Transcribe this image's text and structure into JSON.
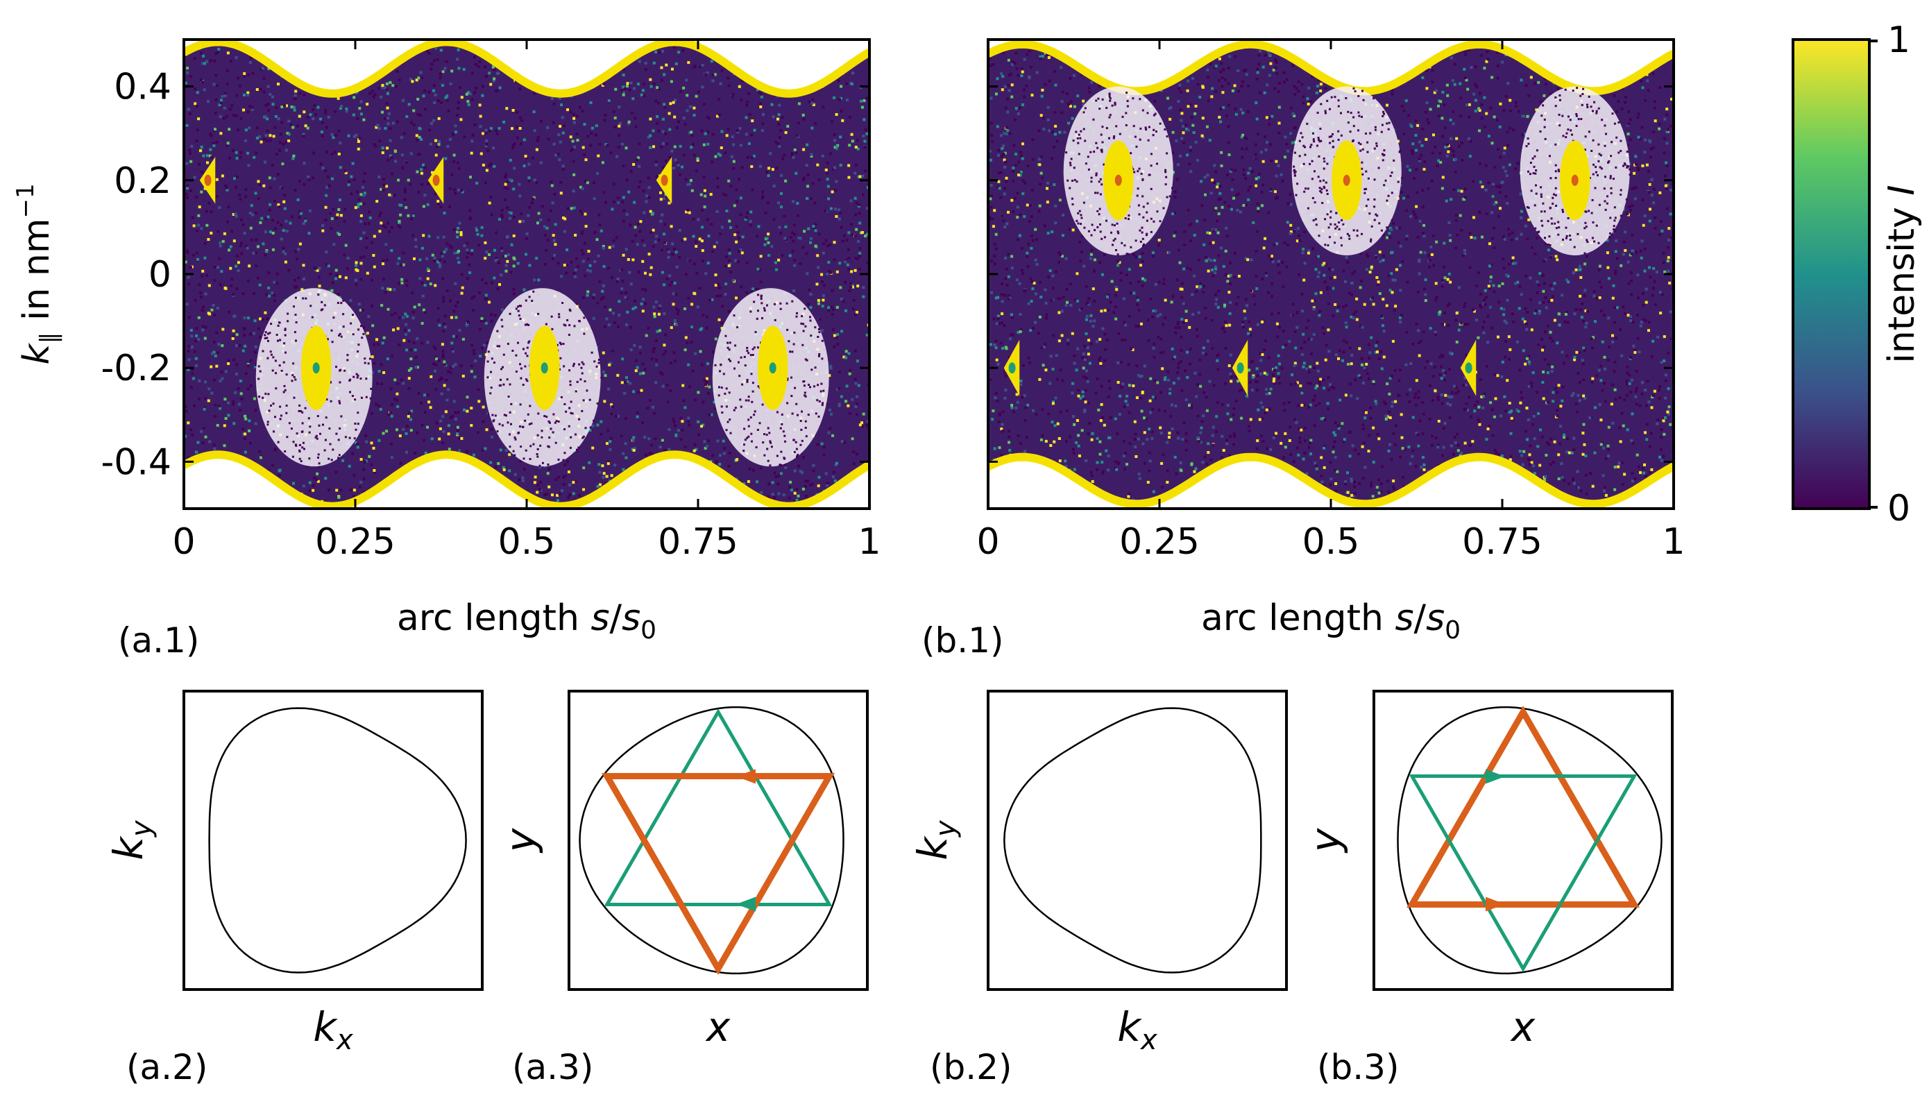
{
  "chart_data": [
    {
      "id": "a.1",
      "type": "scatter",
      "panel_label": "(a.1)",
      "xlabel": {
        "main": "arc length ",
        "var": "s",
        "slash": "/",
        "var0": "s",
        "sub": "0"
      },
      "ylabel": {
        "var": "k",
        "sub": "∥",
        "unit": " in nm",
        "sup": "−1"
      },
      "xlim": [
        0,
        1
      ],
      "ylim": [
        -0.5,
        0.5
      ],
      "xticks": [
        0,
        0.25,
        0.5,
        0.75,
        1
      ],
      "xtick_labels": [
        "0",
        "0.25",
        "0.5",
        "0.75",
        "1"
      ],
      "yticks": [
        0.4,
        0.2,
        0,
        -0.2,
        -0.4
      ],
      "ytick_labels": [
        "0.4",
        "0.2",
        "0",
        "-0.2",
        "-0.4"
      ],
      "colorscale": "viridis",
      "boundary_mean": 0.44,
      "boundary_amplitude": 0.055,
      "boundary_period": 0.333,
      "islands": [
        {
          "s": 0.035,
          "k": 0.2,
          "w": 0.012,
          "h": 0.05,
          "core": "#d95f1a",
          "shape": "triangle-left"
        },
        {
          "s": 0.368,
          "k": 0.2,
          "w": 0.012,
          "h": 0.05,
          "core": "#d95f1a",
          "shape": "triangle-left"
        },
        {
          "s": 0.701,
          "k": 0.2,
          "w": 0.012,
          "h": 0.05,
          "core": "#d95f1a",
          "shape": "triangle-left"
        },
        {
          "s": 0.193,
          "k": -0.2,
          "w": 0.022,
          "h": 0.09,
          "core": "#1b9e77",
          "shape": "oval"
        },
        {
          "s": 0.526,
          "k": -0.2,
          "w": 0.022,
          "h": 0.09,
          "core": "#1b9e77",
          "shape": "oval"
        },
        {
          "s": 0.859,
          "k": -0.2,
          "w": 0.022,
          "h": 0.09,
          "core": "#1b9e77",
          "shape": "oval"
        }
      ],
      "white_regions": [
        {
          "s": 0.19,
          "k": -0.22,
          "w": 0.085,
          "h": 0.19
        },
        {
          "s": 0.523,
          "k": -0.22,
          "w": 0.085,
          "h": 0.19
        },
        {
          "s": 0.856,
          "k": -0.22,
          "w": 0.085,
          "h": 0.19
        }
      ]
    },
    {
      "id": "b.1",
      "type": "scatter",
      "panel_label": "(b.1)",
      "xlabel": {
        "main": "arc length ",
        "var": "s",
        "slash": "/",
        "var0": "s",
        "sub": "0"
      },
      "xlim": [
        0,
        1
      ],
      "ylim": [
        -0.5,
        0.5
      ],
      "xticks": [
        0,
        0.25,
        0.5,
        0.75,
        1
      ],
      "xtick_labels": [
        "0",
        "0.25",
        "0.5",
        "0.75",
        "1"
      ],
      "colorscale": "viridis",
      "boundary_mean": 0.44,
      "boundary_amplitude": 0.05,
      "boundary_period": 0.333,
      "islands": [
        {
          "s": 0.19,
          "k": 0.2,
          "w": 0.022,
          "h": 0.085,
          "core": "#d95f1a",
          "shape": "oval"
        },
        {
          "s": 0.523,
          "k": 0.2,
          "w": 0.022,
          "h": 0.085,
          "core": "#d95f1a",
          "shape": "oval"
        },
        {
          "s": 0.856,
          "k": 0.2,
          "w": 0.022,
          "h": 0.085,
          "core": "#d95f1a",
          "shape": "oval"
        },
        {
          "s": 0.035,
          "k": -0.2,
          "w": 0.012,
          "h": 0.06,
          "core": "#1b9e77",
          "shape": "triangle-left"
        },
        {
          "s": 0.368,
          "k": -0.2,
          "w": 0.012,
          "h": 0.06,
          "core": "#1b9e77",
          "shape": "triangle-left"
        },
        {
          "s": 0.701,
          "k": -0.2,
          "w": 0.012,
          "h": 0.06,
          "core": "#1b9e77",
          "shape": "triangle-left"
        }
      ],
      "white_regions": [
        {
          "s": 0.19,
          "k": 0.22,
          "w": 0.08,
          "h": 0.18
        },
        {
          "s": 0.523,
          "k": 0.22,
          "w": 0.08,
          "h": 0.18
        },
        {
          "s": 0.856,
          "k": 0.22,
          "w": 0.08,
          "h": 0.18
        }
      ]
    }
  ],
  "colorbar": {
    "label": "intensity ",
    "label_var": "I",
    "min_label": "0",
    "max_label": "1",
    "colors": [
      "#440154",
      "#3b528b",
      "#21918c",
      "#5ec962",
      "#fde725"
    ]
  },
  "insets": [
    {
      "id": "a.2",
      "panel_label": "(a.2)",
      "xlabel": "k",
      "xsub": "x",
      "ylabel": "k",
      "ysub": "y",
      "kind": "k-space",
      "orientation": "right"
    },
    {
      "id": "a.3",
      "panel_label": "(a.3)",
      "xlabel": "x",
      "ylabel": "y",
      "kind": "real-space",
      "orientation": "right",
      "triangles": [
        {
          "color": "#d95f1a",
          "arrow": "left"
        },
        {
          "color": "#1b9e77",
          "arrow": "left"
        }
      ]
    },
    {
      "id": "b.2",
      "panel_label": "(b.2)",
      "xlabel": "k",
      "xsub": "x",
      "ylabel": "k",
      "ysub": "y",
      "kind": "k-space",
      "orientation": "left"
    },
    {
      "id": "b.3",
      "panel_label": "(b.3)",
      "xlabel": "x",
      "ylabel": "y",
      "kind": "real-space",
      "orientation": "left",
      "triangles": [
        {
          "color": "#d95f1a",
          "arrow": "right"
        },
        {
          "color": "#1b9e77",
          "arrow": "right"
        }
      ]
    }
  ],
  "colors": {
    "orange": "#d95f1a",
    "green": "#1b9e77",
    "island_fill": "#f5e100"
  }
}
